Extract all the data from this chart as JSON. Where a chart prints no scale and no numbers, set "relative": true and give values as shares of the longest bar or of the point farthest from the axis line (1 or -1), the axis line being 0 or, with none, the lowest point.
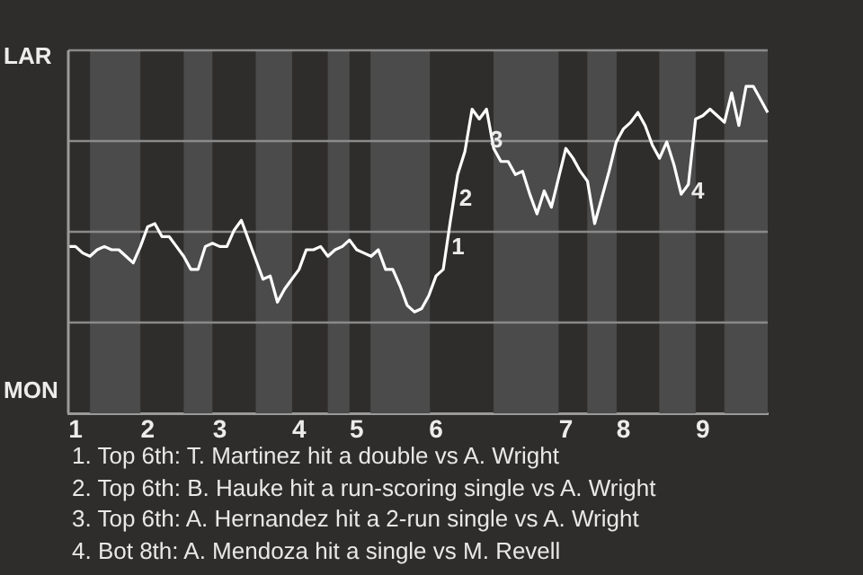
{
  "chart_data": {
    "type": "line",
    "relative": true,
    "categories": [
      null,
      "1",
      null,
      null,
      null,
      null,
      null,
      null,
      null,
      null,
      null,
      "2",
      null,
      null,
      null,
      null,
      null,
      null,
      null,
      null,
      null,
      "3",
      null,
      null,
      null,
      null,
      null,
      null,
      null,
      null,
      null,
      null,
      "4",
      null,
      null,
      null,
      null,
      null,
      null,
      null,
      "5",
      null,
      null,
      null,
      null,
      null,
      null,
      null,
      null,
      null,
      null,
      "6",
      null,
      null,
      null,
      null,
      null,
      null,
      null,
      null,
      null,
      null,
      null,
      null,
      null,
      null,
      null,
      null,
      null,
      "7",
      null,
      null,
      null,
      null,
      null,
      null,
      null,
      "8",
      null,
      null,
      null,
      null,
      null,
      null,
      null,
      null,
      null,
      null,
      "9",
      null,
      null,
      null,
      null,
      null,
      null,
      null,
      null,
      null
    ],
    "series": [
      {
        "color": "#ffffff",
        "values": [
          0.51,
          0.51,
          0.49,
          0.48,
          0.5,
          0.51,
          0.5,
          0.5,
          0.48,
          0.46,
          0.51,
          0.57,
          0.58,
          0.54,
          0.54,
          0.51,
          0.48,
          0.44,
          0.44,
          0.51,
          0.52,
          0.51,
          0.51,
          0.56,
          0.59,
          0.53,
          0.47,
          0.41,
          0.42,
          0.34,
          0.38,
          0.41,
          0.44,
          0.5,
          0.5,
          0.51,
          0.48,
          0.5,
          0.51,
          0.53,
          0.5,
          0.49,
          0.48,
          0.5,
          0.44,
          0.44,
          0.39,
          0.33,
          0.31,
          0.32,
          0.36,
          0.42,
          0.44,
          0.59,
          0.73,
          0.8,
          0.93,
          0.9,
          0.93,
          0.81,
          0.77,
          0.77,
          0.73,
          0.74,
          0.67,
          0.61,
          0.68,
          0.63,
          0.72,
          0.81,
          0.78,
          0.74,
          0.71,
          0.58,
          0.66,
          0.74,
          0.83,
          0.87,
          0.89,
          0.92,
          0.88,
          0.82,
          0.78,
          0.83,
          0.76,
          0.67,
          0.7,
          0.9,
          0.91,
          0.93,
          0.91,
          0.89,
          0.98,
          0.88,
          1,
          1,
          0.96,
          0.92
        ]
      }
    ],
    "grid": "y",
    "legend": false,
    "marker": "none",
    "line_style": "solid",
    "annotations": [
      "LAR",
      "MON",
      "1",
      "2",
      "3",
      "4",
      "1. Top 6th: T. Martinez hit a double vs A. Wright",
      "2. Top 6th: B. Hauke hit a run-scoring single vs A. Wright",
      "3. Top 6th: A. Hernandez hit a 2-run single vs A. Wright",
      "4. Bot 8th: A. Mendoza hit a single vs M. Revell"
    ]
  }
}
